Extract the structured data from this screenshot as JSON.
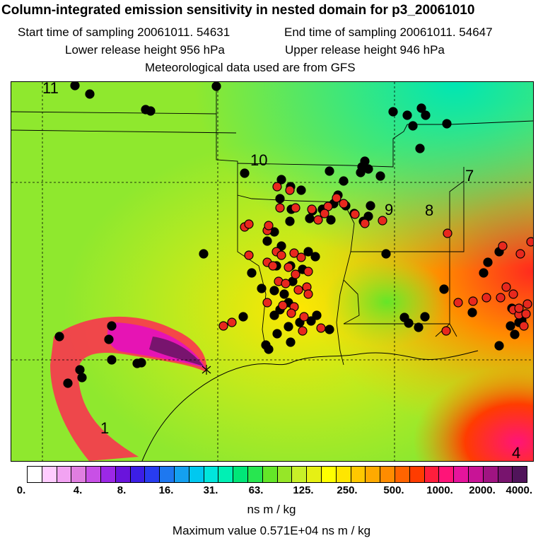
{
  "header": {
    "title": "Column-integrated emission sensitivity in nested domain for p3_20061010",
    "start_label": "Start time of sampling 20061011. 54631",
    "end_label": "End time of sampling 20061011. 54647",
    "lower_label": "Lower release height  956 hPa",
    "upper_label": "Upper release height  946 hPa",
    "met_label": "Meteorological data used are from GFS"
  },
  "map": {
    "region_labels": [
      "11",
      "10",
      "9",
      "8",
      "7",
      "1",
      "4"
    ],
    "colors": {
      "background_field": "#a6ea2e",
      "dot_black": "#000000",
      "dot_red": "#e8281e"
    }
  },
  "colorbar": {
    "tick_labels": [
      "0.",
      "4.",
      "8.",
      "16.",
      "31.",
      "63.",
      "125.",
      "250.",
      "500.",
      "1000.",
      "2000.",
      "4000."
    ],
    "units": "ns m / kg",
    "colors": [
      "#ffffff",
      "#ffccff",
      "#f2a3f2",
      "#e07ee0",
      "#c850e6",
      "#9c28e6",
      "#6a14dc",
      "#3c1ee6",
      "#283cf0",
      "#1e78f0",
      "#14a0f0",
      "#00c8f0",
      "#00e6dc",
      "#00f0b4",
      "#00e678",
      "#28e650",
      "#64e628",
      "#96e628",
      "#c8f028",
      "#e6f014",
      "#ffff00",
      "#ffe600",
      "#ffc800",
      "#ffaa00",
      "#ff8c00",
      "#ff6400",
      "#ff3c00",
      "#ff1e3c",
      "#ff1478",
      "#e6149c",
      "#c81496",
      "#a01482",
      "#78146e",
      "#50145a"
    ]
  },
  "footer": {
    "max_label": "Maximum value  0.571E+04 ns m / kg"
  }
}
